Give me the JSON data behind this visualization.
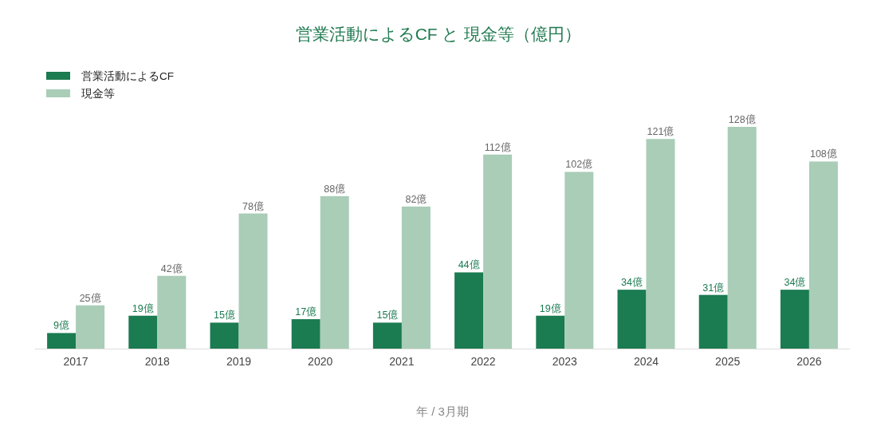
{
  "chart_data": {
    "type": "bar",
    "title": "営業活動によるCF と 現金等（億円）",
    "xlabel": "年 / 3月期",
    "legend": "top left",
    "categories": [
      "2017",
      "2018",
      "2019",
      "2020",
      "2021",
      "2022",
      "2023",
      "2024",
      "2025",
      "2026"
    ],
    "series": [
      {
        "name": "営業活動によるCF",
        "color": "#1b7b51",
        "values": [
          9,
          19,
          15,
          17,
          15,
          44,
          19,
          34,
          31,
          34
        ],
        "value_labels": [
          "9億",
          "19億",
          "15億",
          "17億",
          "15億",
          "44億",
          "19億",
          "34億",
          "31億",
          "34億"
        ]
      },
      {
        "name": "現金等",
        "color": "#a9cdb7",
        "values": [
          25,
          42,
          78,
          88,
          82,
          112,
          102,
          121,
          128,
          108
        ],
        "value_labels": [
          "25億",
          "42億",
          "78億",
          "88億",
          "82億",
          "112億",
          "102億",
          "121億",
          "128億",
          "108億"
        ]
      }
    ]
  }
}
